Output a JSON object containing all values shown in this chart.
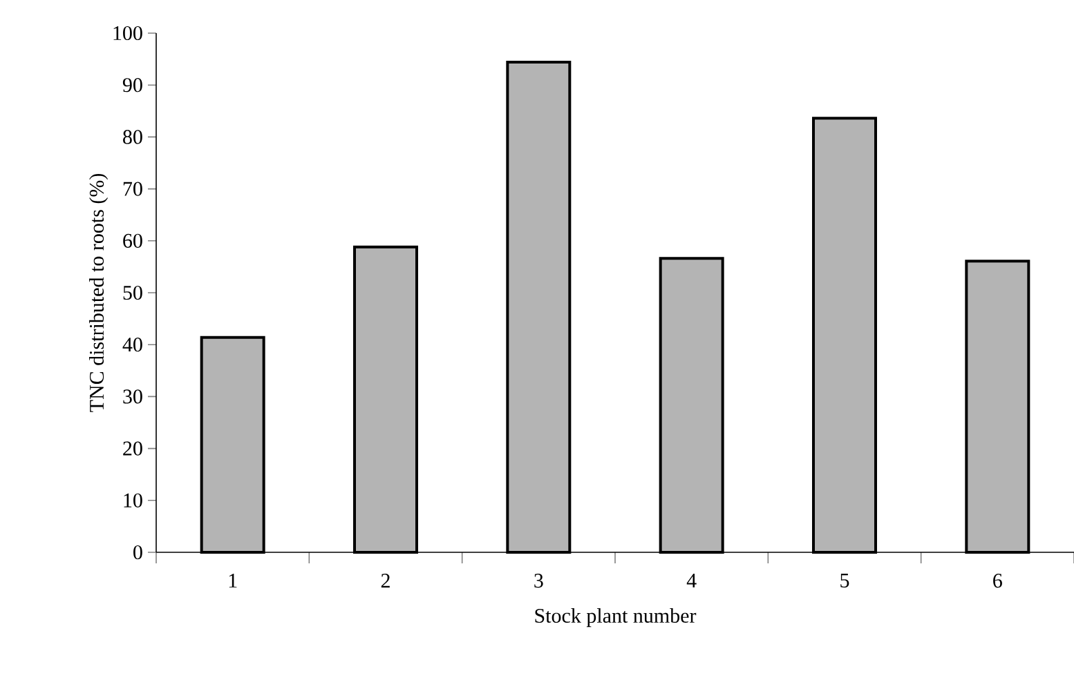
{
  "chart_data": {
    "type": "bar",
    "xlabel": "Stock plant number",
    "ylabel": "TNC distributed to roots (%)",
    "categories": [
      "1",
      "2",
      "3",
      "4",
      "5",
      "6"
    ],
    "values": [
      41.4,
      58.8,
      94.4,
      56.6,
      83.6,
      56.1
    ],
    "color": "#b4b4b4",
    "ylim": [
      0,
      100
    ],
    "yticks": [
      0,
      10,
      20,
      30,
      40,
      50,
      60,
      70,
      80,
      90,
      100
    ]
  }
}
